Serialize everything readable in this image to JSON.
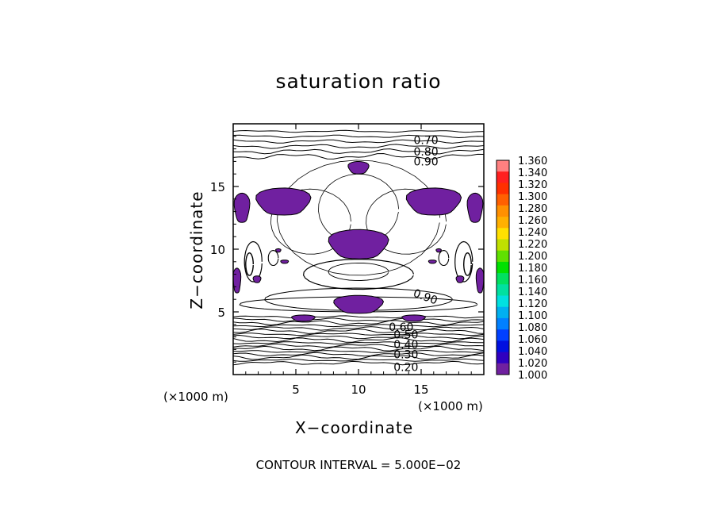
{
  "chart_data": {
    "type": "contour",
    "title": "saturation ratio",
    "xlabel": "X−coordinate",
    "ylabel": "Z−coordinate",
    "x_unit": "(×1000 m)",
    "x_unit_right": "(×1000 m)",
    "xlim": [
      0,
      20
    ],
    "ylim": [
      0,
      20
    ],
    "x_ticks": [
      5,
      10,
      15
    ],
    "y_ticks": [
      5,
      10,
      15
    ],
    "contour_interval": "CONTOUR INTERVAL = 5.000E−02",
    "fill_threshold": 1.0,
    "fill_color": "#7020a0",
    "contour_labels_top": [
      "0.70",
      "0.80",
      "0.90"
    ],
    "contour_labels_bottom": [
      "0.60",
      "0.50",
      "0.40",
      "0.30",
      "0.20"
    ],
    "contour_label_mid": "0.90",
    "colorbar": {
      "labels": [
        "1.360",
        "1.340",
        "1.320",
        "1.300",
        "1.280",
        "1.260",
        "1.240",
        "1.220",
        "1.200",
        "1.180",
        "1.160",
        "1.140",
        "1.120",
        "1.100",
        "1.080",
        "1.060",
        "1.040",
        "1.020",
        "1.000"
      ],
      "colors": [
        "#ff8080",
        "#ff2020",
        "#ff3000",
        "#ff6000",
        "#ff9000",
        "#ffb000",
        "#ffe000",
        "#c0e000",
        "#60e000",
        "#00e000",
        "#00e060",
        "#00e0a0",
        "#00e0e0",
        "#00b0f0",
        "#0080ff",
        "#0040ff",
        "#0010e0",
        "#3000c0",
        "#7020a0"
      ]
    }
  }
}
